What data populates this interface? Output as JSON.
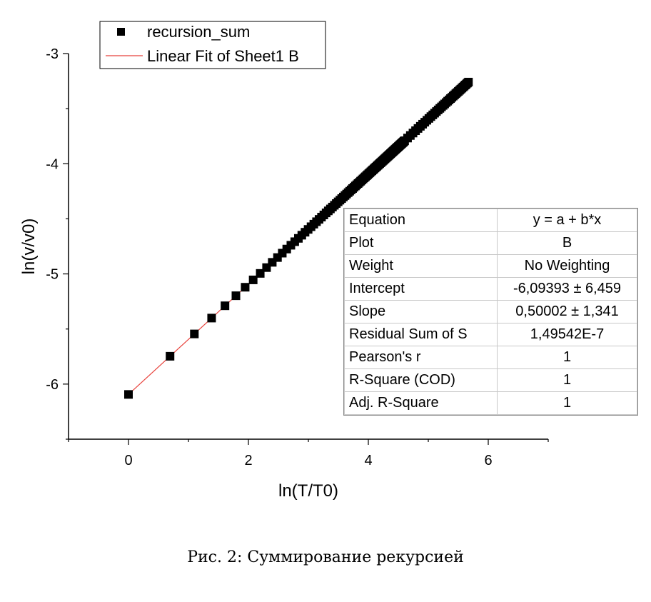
{
  "chart_data": {
    "type": "scatter",
    "xlabel": "ln(T/T0)",
    "ylabel": "ln(v/v0)",
    "xlim": [
      -1,
      7
    ],
    "ylim": [
      -6.5,
      -3
    ],
    "x_ticks": [
      0,
      2,
      4,
      6
    ],
    "y_ticks": [
      -6,
      -5,
      -4,
      -3
    ],
    "grid": false,
    "legend_placement": "top-left",
    "series": [
      {
        "name": "recursion_sum",
        "kind": "scatter",
        "marker": "square",
        "color": "#000000",
        "x": [
          0,
          0.6931,
          1.0986,
          1.3863,
          1.6094,
          1.7918,
          1.9459,
          2.0794,
          2.1972,
          2.3026,
          2.3979,
          2.4849,
          2.5649,
          2.6391,
          2.7081,
          2.7726,
          2.8332,
          2.8904,
          2.9444,
          2.9957,
          3.0445,
          3.091,
          3.1355,
          3.1781,
          3.2189,
          3.2581,
          3.2958,
          3.3322,
          3.3673,
          3.4012,
          3.434,
          3.4657,
          3.4965,
          3.5264,
          3.5553,
          3.5835,
          3.6109,
          3.6376,
          3.6636,
          3.6889,
          3.7136,
          3.7377,
          3.7612,
          3.7842,
          3.8067,
          3.8286,
          3.8501,
          3.8712,
          3.8918,
          3.912,
          3.9318,
          3.9512,
          3.9703,
          3.989,
          4.0073,
          4.0254,
          4.0431,
          4.0604,
          4.0775,
          4.0943,
          4.1109,
          4.1271,
          4.1431,
          4.1589,
          4.1744,
          4.1897,
          4.2047,
          4.2195,
          4.2341,
          4.2485,
          4.2627,
          4.2767,
          4.2905,
          4.3041,
          4.3175,
          4.3307,
          4.3438,
          4.3567,
          4.3694,
          4.382,
          4.3944,
          4.4067,
          4.4188,
          4.4308,
          4.4427,
          4.4543,
          4.4659,
          4.4773,
          4.4886,
          4.4998,
          4.5109,
          4.5218,
          4.5326,
          4.5433,
          4.5539,
          4.5643,
          4.5747,
          4.585,
          4.5951,
          4.6052,
          4.654,
          4.7005,
          4.7449,
          4.7875,
          4.8283,
          4.8675,
          4.9053,
          4.9416,
          4.9767,
          5.0106,
          5.0434,
          5.0752,
          5.1059,
          5.1358,
          5.1648,
          5.193,
          5.2204,
          5.247,
          5.273,
          5.2983,
          5.323,
          5.3471,
          5.3706,
          5.3936,
          5.4161,
          5.4381,
          5.4596,
          5.4806,
          5.5013,
          5.5215,
          5.5413,
          5.5607,
          5.5797,
          5.5984,
          5.6168,
          5.6348,
          5.6525,
          5.6699
        ],
        "fit_intercept": -6.09393,
        "fit_slope": 0.50002
      },
      {
        "name": "Linear Fit of Sheet1 B",
        "kind": "line",
        "color": "#e8423c",
        "x_range": [
          0,
          5.7
        ]
      }
    ],
    "fit_table": [
      {
        "label": "Equation",
        "value": "y = a + b*x"
      },
      {
        "label": "Plot",
        "value": "B"
      },
      {
        "label": "Weight",
        "value": "No Weighting"
      },
      {
        "label": "Intercept",
        "value": "-6,09393 ± 6,459"
      },
      {
        "label": "Slope",
        "value": "0,50002 ± 1,341"
      },
      {
        "label": "Residual Sum of S",
        "value": "1,49542E-7"
      },
      {
        "label": "Pearson's r",
        "value": "1"
      },
      {
        "label": "R-Square (COD)",
        "value": "1"
      },
      {
        "label": "Adj. R-Square",
        "value": "1"
      }
    ]
  },
  "caption": "Рис. 2: Суммирование рекурсией"
}
